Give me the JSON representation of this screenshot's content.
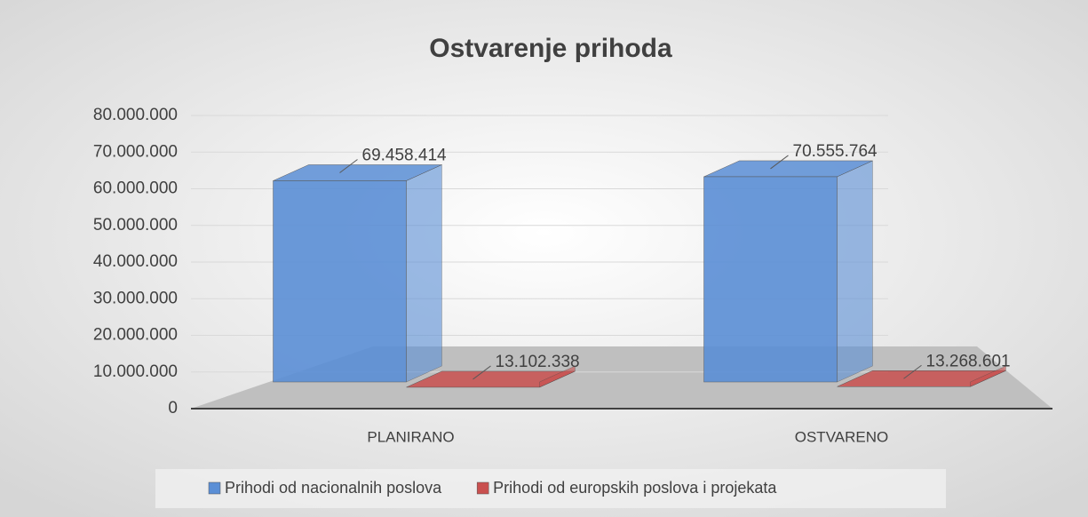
{
  "chart_data": {
    "type": "bar3d",
    "title": "Ostvarenje prihoda",
    "categories": [
      "PLANIRANO",
      "OSTVARENO"
    ],
    "series": [
      {
        "name": "Prihodi od nacionalnih poslova",
        "color": "#5b8fd6",
        "values": [
          69458414,
          70555764
        ],
        "value_labels": [
          "69.458.414",
          "70.555.764"
        ]
      },
      {
        "name": "Prihodi od europskih poslova i projekata",
        "color": "#c9504f",
        "values": [
          13102338,
          13268601
        ],
        "value_labels": [
          "13.102.338",
          "13.268.601"
        ]
      }
    ],
    "ylim": [
      0,
      80000000
    ],
    "yticks": [
      0,
      {
        "value": 10000000,
        "label": "10.000.000"
      },
      {
        "value": 20000000,
        "label": "20.000.000"
      },
      {
        "value": 30000000,
        "label": "30.000.000"
      },
      {
        "value": 40000000,
        "label": "40.000.000"
      },
      {
        "value": 50000000,
        "label": "50.000.000"
      },
      {
        "value": 60000000,
        "label": "60.000.000"
      },
      {
        "value": 70000000,
        "label": "70.000.000"
      },
      {
        "value": 80000000,
        "label": "80.000.000"
      }
    ],
    "grid": true,
    "legend": "bottom"
  }
}
